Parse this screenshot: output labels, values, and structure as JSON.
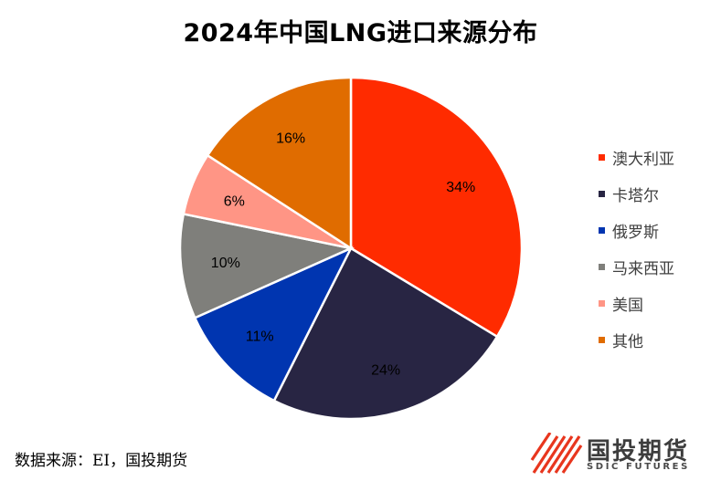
{
  "chart_data": {
    "type": "pie",
    "title": "2024年中国LNG进口来源分布",
    "categories": [
      "澳大利亚",
      "卡塔尔",
      "俄罗斯",
      "马来西亚",
      "美国",
      "其他"
    ],
    "values": [
      34,
      24,
      11,
      10,
      6,
      16
    ],
    "value_labels": [
      "34%",
      "24%",
      "11%",
      "10%",
      "6%",
      "16%"
    ],
    "colors": [
      "#ff2b00",
      "#282543",
      "#0035b0",
      "#7f7f7b",
      "#ff9585",
      "#e06c00"
    ],
    "legend_position": "right",
    "start": "12 o'clock, clockwise"
  },
  "source": "数据来源：EI，国投期货",
  "logo": {
    "name_cn": "国投期货",
    "name_en": "SDIC FUTURES",
    "color": "#e8361e"
  }
}
